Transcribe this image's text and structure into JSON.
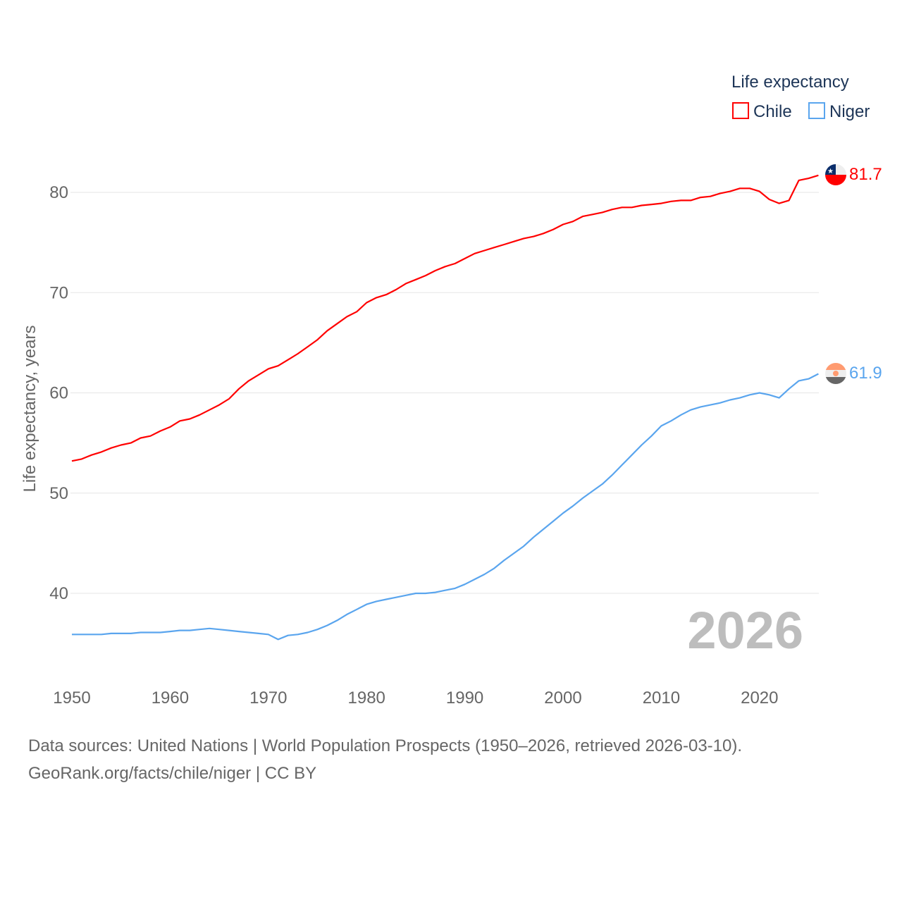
{
  "chart_data": {
    "type": "line",
    "title": "",
    "xlabel": "",
    "ylabel": "Life expectancy, years",
    "legend_title": "Life expectancy",
    "legend_position": "top-right",
    "current_year_label": "2026",
    "xlim": [
      1950,
      2026
    ],
    "x_ticks": [
      1950,
      1960,
      1970,
      1980,
      1990,
      2000,
      2010,
      2020
    ],
    "y_ticks": [
      40,
      50,
      60,
      70,
      80
    ],
    "grid": true,
    "x": [
      1950,
      1951,
      1952,
      1953,
      1954,
      1955,
      1956,
      1957,
      1958,
      1959,
      1960,
      1961,
      1962,
      1963,
      1964,
      1965,
      1966,
      1967,
      1968,
      1969,
      1970,
      1971,
      1972,
      1973,
      1974,
      1975,
      1976,
      1977,
      1978,
      1979,
      1980,
      1981,
      1982,
      1983,
      1984,
      1985,
      1986,
      1987,
      1988,
      1989,
      1990,
      1991,
      1992,
      1993,
      1994,
      1995,
      1996,
      1997,
      1998,
      1999,
      2000,
      2001,
      2002,
      2003,
      2004,
      2005,
      2006,
      2007,
      2008,
      2009,
      2010,
      2011,
      2012,
      2013,
      2014,
      2015,
      2016,
      2017,
      2018,
      2019,
      2020,
      2021,
      2022,
      2023,
      2024,
      2025,
      2026
    ],
    "series": [
      {
        "name": "Chile",
        "color": "#ff0000",
        "end_label": "81.7",
        "values": [
          53.2,
          53.4,
          53.8,
          54.1,
          54.5,
          54.8,
          55.0,
          55.5,
          55.7,
          56.2,
          56.6,
          57.2,
          57.4,
          57.8,
          58.3,
          58.8,
          59.4,
          60.4,
          61.2,
          61.8,
          62.4,
          62.7,
          63.3,
          63.9,
          64.6,
          65.3,
          66.2,
          66.9,
          67.6,
          68.1,
          69.0,
          69.5,
          69.8,
          70.3,
          70.9,
          71.3,
          71.7,
          72.2,
          72.6,
          72.9,
          73.4,
          73.9,
          74.2,
          74.5,
          74.8,
          75.1,
          75.4,
          75.6,
          75.9,
          76.3,
          76.8,
          77.1,
          77.6,
          77.8,
          78.0,
          78.3,
          78.5,
          78.5,
          78.7,
          78.8,
          78.9,
          79.1,
          79.2,
          79.2,
          79.5,
          79.6,
          79.9,
          80.1,
          80.4,
          80.4,
          80.1,
          79.3,
          78.9,
          79.2,
          81.2,
          81.4,
          81.7
        ]
      },
      {
        "name": "Niger",
        "color": "#5aa5ee",
        "end_label": "61.9",
        "values": [
          35.9,
          35.9,
          35.9,
          35.9,
          36.0,
          36.0,
          36.0,
          36.1,
          36.1,
          36.1,
          36.2,
          36.3,
          36.3,
          36.4,
          36.5,
          36.4,
          36.3,
          36.2,
          36.1,
          36.0,
          35.9,
          35.4,
          35.8,
          35.9,
          36.1,
          36.4,
          36.8,
          37.3,
          37.9,
          38.4,
          38.9,
          39.2,
          39.4,
          39.6,
          39.8,
          40.0,
          40.0,
          40.1,
          40.3,
          40.5,
          40.9,
          41.4,
          41.9,
          42.5,
          43.3,
          44.0,
          44.7,
          45.6,
          46.4,
          47.2,
          48.0,
          48.7,
          49.5,
          50.2,
          50.9,
          51.8,
          52.8,
          53.8,
          54.8,
          55.7,
          56.7,
          57.2,
          57.8,
          58.3,
          58.6,
          58.8,
          59.0,
          59.3,
          59.5,
          59.8,
          60.0,
          59.8,
          59.5,
          60.4,
          61.2,
          61.4,
          61.9
        ]
      }
    ]
  },
  "footer": {
    "line1": "Data sources: United Nations | World Population Prospects (1950–2026, retrieved 2026-03-10).",
    "line2": "GeoRank.org/facts/chile/niger | CC BY"
  }
}
